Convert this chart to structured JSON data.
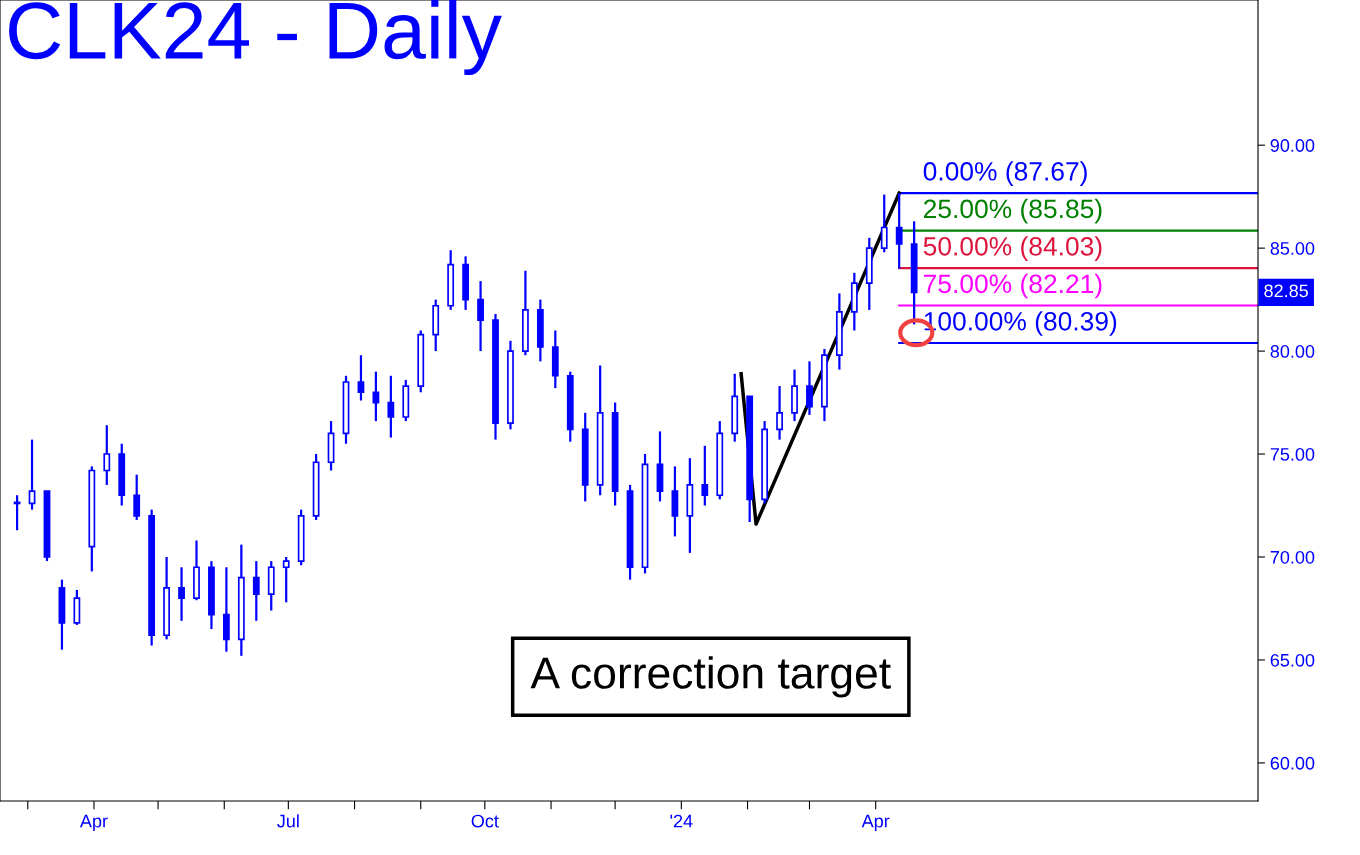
{
  "chart_data": {
    "type": "candlestick",
    "title": "CLK24 - Daily",
    "color": "#0000ff",
    "x": [
      "2023-02-24",
      "2023-03-03",
      "2023-03-10",
      "2023-03-17",
      "2023-03-24",
      "2023-03-31",
      "2023-04-07",
      "2023-04-14",
      "2023-04-21",
      "2023-04-28",
      "2023-05-05",
      "2023-05-12",
      "2023-05-19",
      "2023-05-26",
      "2023-06-02",
      "2023-06-09",
      "2023-06-16",
      "2023-06-23",
      "2023-06-30",
      "2023-07-07",
      "2023-07-14",
      "2023-07-21",
      "2023-07-28",
      "2023-08-04",
      "2023-08-11",
      "2023-08-18",
      "2023-08-25",
      "2023-09-01",
      "2023-09-08",
      "2023-09-15",
      "2023-09-22",
      "2023-09-29",
      "2023-10-06",
      "2023-10-13",
      "2023-10-20",
      "2023-10-27",
      "2023-11-03",
      "2023-11-10",
      "2023-11-17",
      "2023-11-24",
      "2023-12-01",
      "2023-12-08",
      "2023-12-15",
      "2023-12-22",
      "2023-12-29",
      "2024-01-05",
      "2024-01-12",
      "2024-01-19",
      "2024-01-26",
      "2024-02-02",
      "2024-02-09",
      "2024-02-16",
      "2024-02-23",
      "2024-03-01",
      "2024-03-08",
      "2024-03-15",
      "2024-03-22",
      "2024-03-29",
      "2024-04-05",
      "2024-04-12",
      "2024-04-19"
    ],
    "ohlc": [
      [
        72.6,
        73.0,
        71.3,
        72.6
      ],
      [
        72.6,
        75.7,
        72.3,
        73.2
      ],
      [
        73.2,
        73.2,
        69.8,
        70.0
      ],
      [
        68.5,
        68.9,
        65.5,
        66.8
      ],
      [
        66.8,
        68.4,
        66.7,
        68.0
      ],
      [
        70.5,
        74.4,
        69.3,
        74.2
      ],
      [
        74.2,
        76.4,
        73.5,
        75.0
      ],
      [
        75.0,
        75.5,
        72.5,
        73.0
      ],
      [
        73.0,
        74.0,
        71.8,
        72.0
      ],
      [
        72.0,
        72.3,
        65.7,
        66.2
      ],
      [
        66.2,
        70.0,
        66.0,
        68.5
      ],
      [
        68.5,
        69.5,
        66.9,
        68.0
      ],
      [
        68.0,
        70.8,
        67.9,
        69.5
      ],
      [
        69.5,
        69.8,
        66.5,
        67.2
      ],
      [
        67.2,
        69.5,
        65.4,
        66.0
      ],
      [
        66.0,
        70.6,
        65.2,
        69.0
      ],
      [
        69.0,
        69.8,
        66.9,
        68.2
      ],
      [
        68.2,
        69.8,
        67.4,
        69.5
      ],
      [
        69.5,
        70.0,
        67.8,
        69.8
      ],
      [
        69.8,
        72.3,
        69.6,
        72.0
      ],
      [
        72.0,
        75.0,
        71.8,
        74.6
      ],
      [
        74.6,
        76.6,
        74.2,
        76.0
      ],
      [
        76.0,
        78.8,
        75.5,
        78.5
      ],
      [
        78.5,
        79.8,
        77.6,
        78.0
      ],
      [
        78.0,
        79.0,
        76.6,
        77.5
      ],
      [
        77.5,
        78.8,
        75.8,
        76.8
      ],
      [
        76.8,
        78.6,
        76.6,
        78.3
      ],
      [
        78.3,
        81.0,
        78.0,
        80.8
      ],
      [
        80.8,
        82.5,
        80.0,
        82.2
      ],
      [
        82.2,
        84.9,
        82.0,
        84.2
      ],
      [
        84.2,
        84.6,
        82.0,
        82.5
      ],
      [
        82.5,
        83.4,
        80.0,
        81.5
      ],
      [
        81.5,
        81.8,
        75.7,
        76.5
      ],
      [
        76.5,
        80.5,
        76.2,
        80.0
      ],
      [
        80.0,
        83.9,
        79.8,
        82.0
      ],
      [
        82.0,
        82.5,
        79.5,
        80.2
      ],
      [
        80.2,
        81.0,
        78.2,
        78.8
      ],
      [
        78.8,
        79.0,
        75.6,
        76.2
      ],
      [
        76.2,
        77.0,
        72.7,
        73.5
      ],
      [
        73.5,
        79.3,
        73.0,
        77.0
      ],
      [
        77.0,
        77.5,
        72.5,
        73.2
      ],
      [
        73.2,
        73.5,
        68.9,
        69.5
      ],
      [
        69.5,
        75.0,
        69.2,
        74.5
      ],
      [
        74.5,
        76.1,
        72.7,
        73.2
      ],
      [
        73.2,
        74.4,
        71.0,
        72.0
      ],
      [
        72.0,
        74.8,
        70.2,
        73.5
      ],
      [
        73.5,
        75.4,
        72.5,
        73.0
      ],
      [
        73.0,
        76.6,
        72.8,
        76.0
      ],
      [
        76.0,
        78.9,
        75.6,
        77.8
      ],
      [
        77.8,
        77.8,
        71.7,
        72.8
      ],
      [
        72.8,
        76.6,
        72.6,
        76.2
      ],
      [
        76.2,
        78.3,
        75.7,
        77.0
      ],
      [
        77.0,
        79.1,
        76.6,
        78.3
      ],
      [
        78.3,
        79.5,
        76.9,
        77.3
      ],
      [
        77.3,
        80.1,
        76.6,
        79.8
      ],
      [
        79.8,
        82.8,
        79.1,
        81.9
      ],
      [
        81.9,
        83.8,
        81.0,
        83.3
      ],
      [
        83.3,
        85.5,
        82.0,
        85.0
      ],
      [
        85.0,
        87.6,
        84.8,
        86.0
      ],
      [
        86.0,
        87.67,
        84.0,
        85.2
      ],
      [
        85.2,
        86.3,
        81.3,
        82.85
      ]
    ],
    "series": [
      {
        "type": "line",
        "color": "#000000",
        "x": [
          "2024-01-29",
          "2024-02-05",
          "2024-04-12"
        ],
        "values": [
          78.9,
          71.6,
          87.67
        ]
      }
    ],
    "ref_lines": [
      {
        "axis": "y",
        "value": 87.67,
        "label": "0.00% (87.67)",
        "color": "#0000ff"
      },
      {
        "axis": "y",
        "value": 85.85,
        "label": "25.00% (85.85)",
        "color": "#008000"
      },
      {
        "axis": "y",
        "value": 84.03,
        "label": "50.00% (84.03)",
        "color": "#dc143c"
      },
      {
        "axis": "y",
        "value": 82.21,
        "label": "75.00% (82.21)",
        "color": "#ff00ff"
      },
      {
        "axis": "y",
        "value": 80.39,
        "label": "100.00% (80.39)",
        "color": "#0000ff"
      }
    ],
    "annotations": [
      "82.85",
      "A correction target"
    ],
    "xlim": [
      "2023-02-16",
      "2024-09-27"
    ],
    "xticks": [
      {
        "value": "2023-03-01",
        "label": null
      },
      {
        "value": "2023-04-01",
        "label": "Apr"
      },
      {
        "value": "2023-05-01",
        "label": null
      },
      {
        "value": "2023-06-01",
        "label": null
      },
      {
        "value": "2023-07-01",
        "label": "Jul"
      },
      {
        "value": "2023-08-01",
        "label": null
      },
      {
        "value": "2023-09-01",
        "label": null
      },
      {
        "value": "2023-10-01",
        "label": "Oct"
      },
      {
        "value": "2023-11-01",
        "label": null
      },
      {
        "value": "2023-12-01",
        "label": null
      },
      {
        "value": "2024-01-01",
        "label": "'24"
      },
      {
        "value": "2024-02-01",
        "label": null
      },
      {
        "value": "2024-03-01",
        "label": null
      },
      {
        "value": "2024-04-01",
        "label": "Apr"
      }
    ],
    "ylim": [
      58.15,
      97.05
    ],
    "yticks": [
      {
        "value": 60,
        "label": "60.00"
      },
      {
        "value": 65,
        "label": "65.00"
      },
      {
        "value": 70,
        "label": "70.00"
      },
      {
        "value": 75,
        "label": "75.00"
      },
      {
        "value": 80,
        "label": "80.00"
      },
      {
        "value": 85,
        "label": "85.00"
      },
      {
        "value": 90,
        "label": "90.00"
      }
    ],
    "grid": false,
    "legend": false
  }
}
